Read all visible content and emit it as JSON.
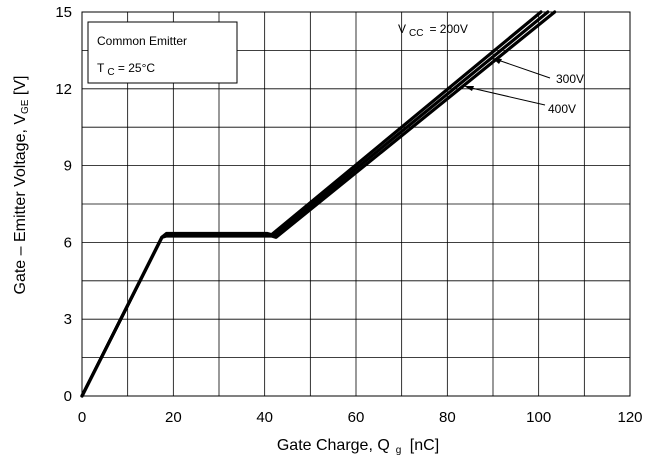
{
  "chart_data": {
    "type": "line",
    "xlabel": "Gate Charge, Q",
    "xlabel_sub": "g",
    "xlabel_unit": " [nC]",
    "ylabel": "Gate – Emitter Voltage, V",
    "ylabel_sub": "GE",
    "ylabel_unit": " [V]",
    "xlim": [
      0,
      120
    ],
    "ylim": [
      0,
      15
    ],
    "x_ticks": [
      0,
      20,
      40,
      60,
      80,
      100,
      120
    ],
    "y_ticks": [
      0,
      3,
      6,
      9,
      12,
      15
    ],
    "x_minor_step": 10,
    "y_minor_step": 1.5,
    "grid": true,
    "legend_box": {
      "line1": "Common Emitter",
      "line2_main": "T",
      "line2_sub": "C",
      "line2_rest": " = 25°C"
    },
    "series": [
      {
        "name": "V CC = 200V",
        "x": [
          0,
          17.5,
          18.5,
          40.5,
          41.5,
          100.5
        ],
        "y": [
          0,
          6.2,
          6.35,
          6.35,
          6.3,
          15
        ]
      },
      {
        "name": "300V",
        "x": [
          0,
          17.5,
          18.5,
          41.0,
          42.0,
          102.0
        ],
        "y": [
          0,
          6.2,
          6.3,
          6.3,
          6.25,
          15
        ]
      },
      {
        "name": "400V",
        "x": [
          0,
          17.5,
          18.5,
          41.5,
          42.5,
          103.5
        ],
        "y": [
          0,
          6.2,
          6.25,
          6.25,
          6.2,
          15
        ]
      }
    ],
    "annotations": {
      "vcc_main": "V",
      "vcc_sub": "CC",
      "vcc_rest": "= 200V",
      "label_300": "300V",
      "label_400": "400V"
    }
  }
}
